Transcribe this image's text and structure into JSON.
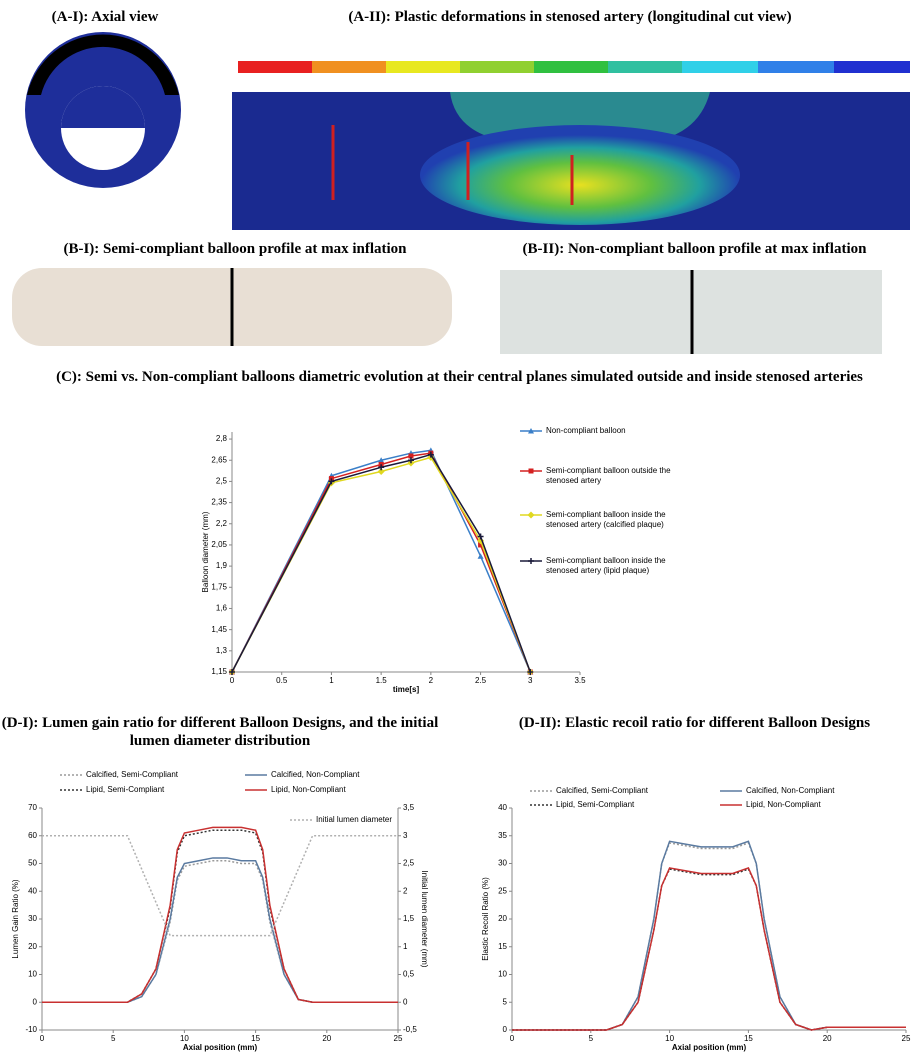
{
  "panels": {
    "a1_title": "(A-I): Axial view",
    "a2_title": "(A-II): Plastic deformations in stenosed artery (longitudinal cut view)",
    "b1_title": "(B-I): Semi-compliant balloon profile at max inflation",
    "b2_title": "(B-II): Non-compliant balloon profile at max inflation"
  },
  "chart_data": [
    {
      "type": "line",
      "title": "(C): Semi vs. Non-compliant balloons diametric evolution at their central planes simulated outside and inside stenosed arteries",
      "x_label": "time[s]",
      "y_label": "Balloon diameter (mm)",
      "x": [
        0,
        1,
        1.5,
        1.8,
        2,
        2.5,
        3
      ],
      "xlim": [
        0,
        3.5
      ],
      "xticks": [
        0,
        0.5,
        1,
        1.5,
        2,
        2.5,
        3,
        3.5
      ],
      "ylim": [
        1.15,
        2.85
      ],
      "yticks": [
        {
          "value": 1.15,
          "label": "1,15"
        },
        {
          "value": 1.3,
          "label": "1,3"
        },
        {
          "value": 1.45,
          "label": "1,45"
        },
        {
          "value": 1.6,
          "label": "1,6"
        },
        {
          "value": 1.75,
          "label": "1,75"
        },
        {
          "value": 1.9,
          "label": "1,9"
        },
        {
          "value": 2.05,
          "label": "2,05"
        },
        {
          "value": 2.2,
          "label": "2,2"
        },
        {
          "value": 2.35,
          "label": "2,35"
        },
        {
          "value": 2.5,
          "label": "2,5"
        },
        {
          "value": 2.65,
          "label": "2,65"
        },
        {
          "value": 2.8,
          "label": "2,8"
        }
      ],
      "series": [
        {
          "name": "Non-compliant balloon",
          "color": "#3a7fc8",
          "marker": "triangle",
          "values": [
            1.15,
            2.54,
            2.65,
            2.7,
            2.72,
            1.97,
            1.15
          ]
        },
        {
          "name": "Semi-compliant balloon outside the stenosed artery",
          "color": "#d42020",
          "marker": "square",
          "values": [
            1.15,
            2.52,
            2.62,
            2.68,
            2.7,
            2.05,
            1.15
          ]
        },
        {
          "name": "Semi-compliant balloon inside the stenosed artery (calcified plaque)",
          "color": "#e0d820",
          "marker": "diamond",
          "values": [
            1.15,
            2.49,
            2.57,
            2.63,
            2.67,
            2.08,
            1.15
          ]
        },
        {
          "name": "Semi-compliant balloon inside the stenosed artery (lipid plaque)",
          "color": "#1a1a3a",
          "marker": "plus",
          "values": [
            1.15,
            2.5,
            2.6,
            2.65,
            2.69,
            2.11,
            1.15
          ]
        }
      ]
    },
    {
      "type": "line",
      "title": "(D-I): Lumen gain ratio for different Balloon Designs, and the initial lumen diameter distribution",
      "x_label": "Axial position (mm)",
      "y_label": "Lumen Gain Ratio (%)",
      "y2_label": "Initial lumen diameter (mm)",
      "x": [
        0,
        2,
        4,
        6,
        7,
        8,
        9,
        9.5,
        10,
        11,
        12,
        13,
        14,
        15,
        15.5,
        16,
        17,
        18,
        19,
        20,
        22,
        25
      ],
      "xlim": [
        0,
        25
      ],
      "xticks": [
        0,
        5,
        10,
        15,
        20,
        25
      ],
      "ylim": [
        -10,
        70
      ],
      "yticks": [
        -10,
        0,
        10,
        20,
        30,
        40,
        50,
        60,
        70
      ],
      "y2lim": [
        -0.5,
        3.5
      ],
      "y2ticks": [
        {
          "value": -0.5,
          "label": "-0,5"
        },
        0,
        {
          "value": 0.5,
          "label": "0,5"
        },
        1,
        {
          "value": 1.5,
          "label": "1,5"
        },
        2,
        {
          "value": 2.5,
          "label": "2,5"
        },
        3,
        {
          "value": 3.5,
          "label": "3,5"
        }
      ],
      "series": [
        {
          "name": "Calcified, Semi-Compliant",
          "color": "#9a9a9a",
          "dash": true,
          "values": [
            0,
            0,
            0,
            0,
            2,
            10,
            29,
            44,
            49,
            50,
            51,
            51,
            50,
            50,
            44,
            29,
            10,
            1,
            0,
            0,
            0,
            0
          ]
        },
        {
          "name": "Calcified, Non-Compliant",
          "color": "#5a7aa0",
          "values": [
            0,
            0,
            0,
            0,
            2,
            10,
            30,
            45,
            50,
            51,
            52,
            52,
            51,
            51,
            45,
            30,
            10,
            1,
            0,
            0,
            0,
            0
          ]
        },
        {
          "name": "Lipid, Semi-Compliant",
          "color": "#333333",
          "dash": true,
          "values": [
            0,
            0,
            0,
            0,
            3,
            12,
            34,
            54,
            60,
            61,
            62,
            62,
            62,
            61,
            54,
            34,
            12,
            1,
            0,
            0,
            0,
            0
          ]
        },
        {
          "name": "Lipid, Non-Compliant",
          "color": "#c83030",
          "values": [
            0,
            0,
            0,
            0,
            3,
            12,
            35,
            55,
            61,
            62,
            63,
            63,
            63,
            62,
            55,
            35,
            12,
            1,
            0,
            0,
            0,
            0
          ]
        },
        {
          "name": "Initial lumen diameter",
          "color": "#b0b0b0",
          "dash": true,
          "axis": "y2",
          "values": [
            3,
            3,
            3,
            3,
            2.4,
            1.8,
            1.2,
            1.2,
            1.2,
            1.2,
            1.2,
            1.2,
            1.2,
            1.2,
            1.2,
            1.2,
            1.8,
            2.4,
            3,
            3,
            3,
            3
          ]
        }
      ]
    },
    {
      "type": "line",
      "title": "(D-II): Elastic recoil ratio for different Balloon Designs",
      "x_label": "Axial position (mm)",
      "y_label": "Elastic Recoil Ratio (%)",
      "x": [
        0,
        2,
        4,
        6,
        7,
        8,
        9,
        9.5,
        10,
        11,
        12,
        13,
        14,
        15,
        15.5,
        16,
        17,
        18,
        19,
        20,
        22,
        25
      ],
      "xlim": [
        0,
        25
      ],
      "xticks": [
        0,
        5,
        10,
        15,
        20,
        25
      ],
      "ylim": [
        0,
        40
      ],
      "yticks": [
        0,
        5,
        10,
        15,
        20,
        25,
        30,
        35,
        40
      ],
      "series": [
        {
          "name": "Calcified, Semi-Compliant",
          "color": "#9a9a9a",
          "dash": true,
          "values": [
            0,
            0,
            0,
            0,
            1,
            6,
            20,
            30,
            33.7,
            33.2,
            32.7,
            32.7,
            32.7,
            33.7,
            30,
            20,
            6,
            1,
            0,
            0.5,
            0.5,
            0.5
          ]
        },
        {
          "name": "Calcified, Non-Compliant",
          "color": "#5a7aa0",
          "values": [
            0,
            0,
            0,
            0,
            1,
            6,
            20,
            30,
            34,
            33.5,
            33,
            33,
            33,
            34,
            30,
            20,
            6,
            1,
            0,
            0.5,
            0.5,
            0.5
          ]
        },
        {
          "name": "Lipid, Semi-Compliant",
          "color": "#333333",
          "dash": true,
          "values": [
            0,
            0,
            0,
            0,
            1,
            5,
            18,
            26,
            29,
            28.5,
            28,
            28,
            28,
            29,
            26,
            18,
            5,
            1,
            0,
            0.5,
            0.5,
            0.5
          ]
        },
        {
          "name": "Lipid, Non-Compliant",
          "color": "#c83030",
          "values": [
            0,
            0,
            0,
            0,
            1,
            5,
            18,
            26,
            29.2,
            28.7,
            28.2,
            28.2,
            28.2,
            29.2,
            26,
            18,
            5,
            1,
            0,
            0.5,
            0.5,
            0.5
          ]
        }
      ]
    }
  ]
}
